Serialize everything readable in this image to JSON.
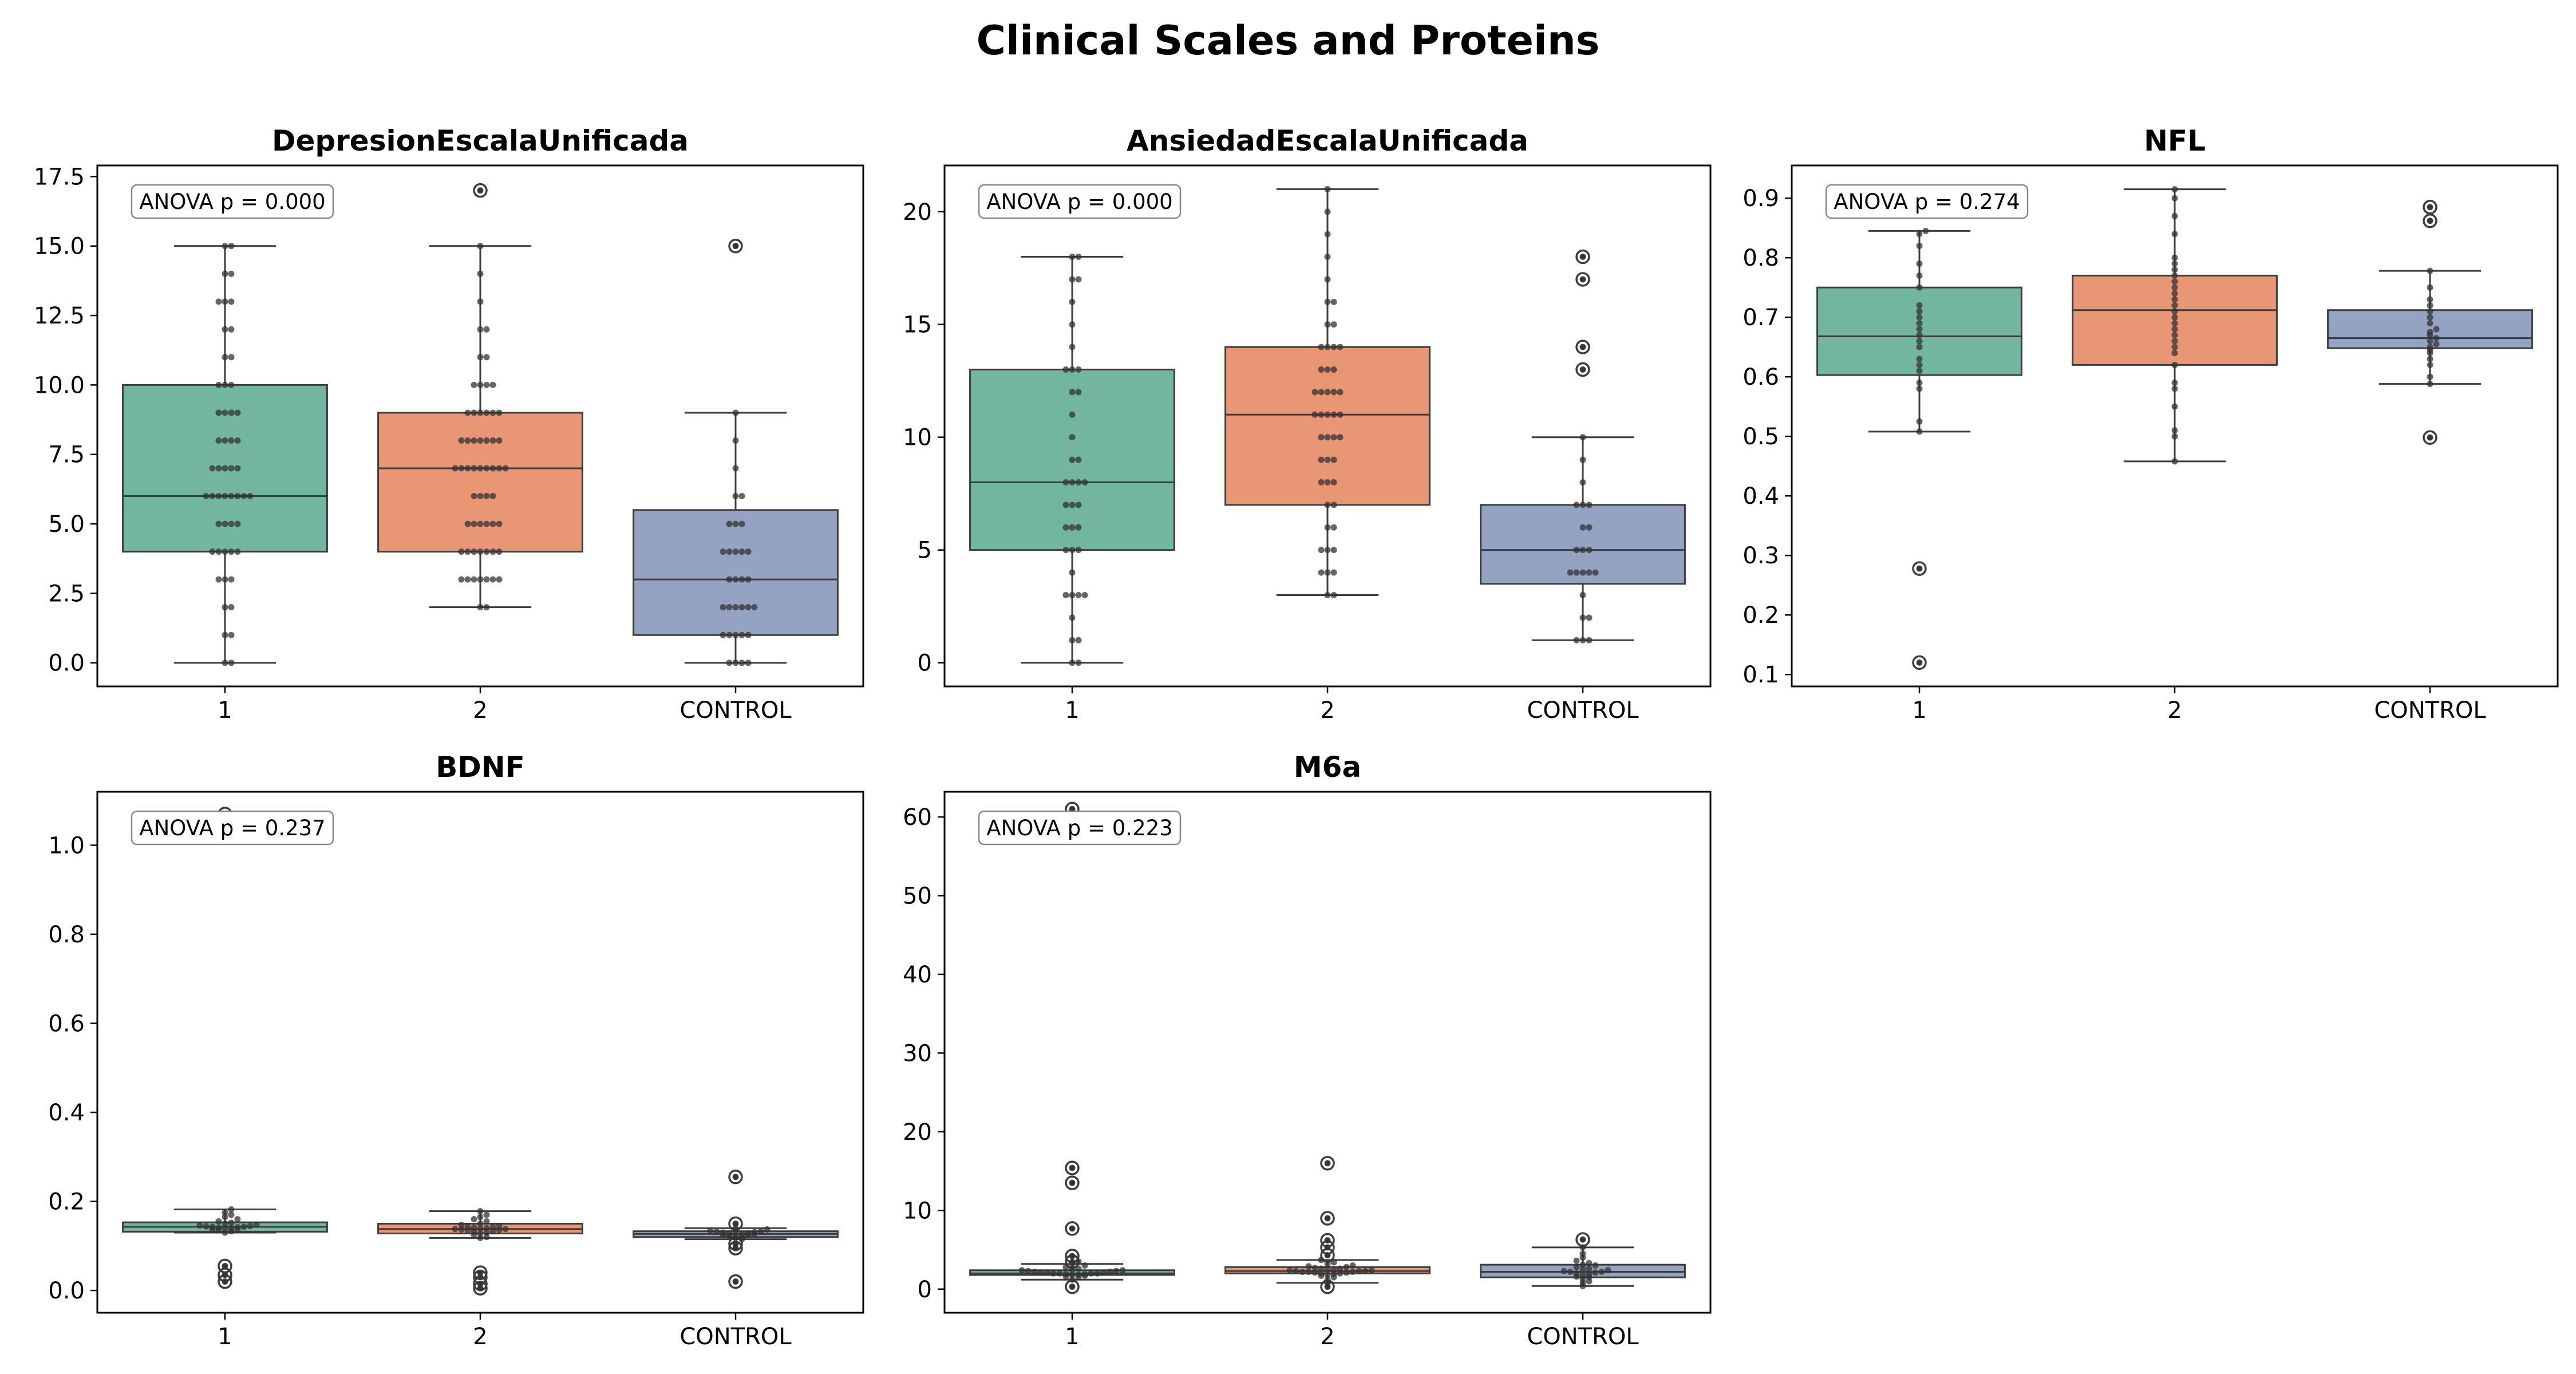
{
  "figure_title": "Clinical Scales and Proteins",
  "chart_data": [
    {
      "type": "box",
      "title": "DepresionEscalaUnificada",
      "categories": [
        "1",
        "2",
        "CONTROL"
      ],
      "colors": [
        "#72b6a1",
        "#e99675",
        "#95a3c3"
      ],
      "ylim": [
        -0.85,
        17.9
      ],
      "yticks": [
        0,
        2.5,
        5,
        7.5,
        10,
        12.5,
        15,
        17.5
      ],
      "ytick_labels": [
        "0.0",
        "2.5",
        "5.0",
        "7.5",
        "10.0",
        "12.5",
        "15.0",
        "17.5"
      ],
      "annotation": "ANOVA p = 0.000",
      "boxes": [
        {
          "q1": 4,
          "median": 6,
          "q3": 10,
          "whisker_low": 0,
          "whisker_high": 15,
          "outliers": []
        },
        {
          "q1": 4,
          "median": 7,
          "q3": 9,
          "whisker_low": 2,
          "whisker_high": 15,
          "outliers": [
            17
          ]
        },
        {
          "q1": 1,
          "median": 3,
          "q3": 5.5,
          "whisker_low": 0,
          "whisker_high": 9,
          "outliers": [
            15
          ]
        }
      ],
      "points": [
        [
          0,
          0,
          1,
          1,
          2,
          2,
          3,
          3,
          3,
          4,
          4,
          4,
          4,
          4,
          5,
          5,
          5,
          5,
          6,
          6,
          6,
          6,
          6,
          6,
          6,
          6,
          7,
          7,
          7,
          7,
          7,
          8,
          8,
          8,
          8,
          9,
          9,
          9,
          9,
          10,
          10,
          10,
          11,
          11,
          12,
          12,
          13,
          13,
          13,
          14,
          14,
          15,
          15
        ],
        [
          2,
          2,
          3,
          3,
          3,
          3,
          3,
          3,
          3,
          4,
          4,
          4,
          4,
          4,
          4,
          4,
          5,
          5,
          5,
          5,
          5,
          5,
          6,
          6,
          6,
          6,
          7,
          7,
          7,
          7,
          7,
          7,
          7,
          7,
          7,
          8,
          8,
          8,
          8,
          8,
          8,
          8,
          9,
          9,
          9,
          9,
          9,
          9,
          10,
          10,
          10,
          10,
          11,
          11,
          12,
          12,
          13,
          14,
          15,
          17
        ],
        [
          0,
          0,
          0,
          0,
          1,
          1,
          1,
          1,
          1,
          2,
          2,
          2,
          2,
          2,
          2,
          3,
          3,
          3,
          3,
          4,
          4,
          4,
          4,
          4,
          5,
          5,
          5,
          6,
          6,
          7,
          8,
          9,
          15
        ]
      ]
    },
    {
      "type": "box",
      "title": "AnsiedadEscalaUnificada",
      "categories": [
        "1",
        "2",
        "CONTROL"
      ],
      "colors": [
        "#72b6a1",
        "#e99675",
        "#95a3c3"
      ],
      "ylim": [
        -1.05,
        22.05
      ],
      "yticks": [
        0,
        5,
        10,
        15,
        20
      ],
      "ytick_labels": [
        "0",
        "5",
        "10",
        "15",
        "20"
      ],
      "annotation": "ANOVA p = 0.000",
      "boxes": [
        {
          "q1": 5,
          "median": 8,
          "q3": 13,
          "whisker_low": 0,
          "whisker_high": 18,
          "outliers": []
        },
        {
          "q1": 7,
          "median": 11,
          "q3": 14,
          "whisker_low": 3,
          "whisker_high": 21,
          "outliers": []
        },
        {
          "q1": 3.5,
          "median": 5,
          "q3": 7,
          "whisker_low": 1,
          "whisker_high": 10,
          "outliers": [
            13,
            14,
            17,
            18
          ]
        }
      ],
      "points": [
        [
          0,
          0,
          1,
          1,
          2,
          3,
          3,
          3,
          3,
          4,
          5,
          5,
          5,
          6,
          6,
          6,
          7,
          7,
          7,
          8,
          8,
          8,
          8,
          9,
          9,
          10,
          11,
          12,
          12,
          13,
          13,
          13,
          14,
          15,
          16,
          17,
          17,
          18,
          18
        ],
        [
          3,
          3,
          4,
          4,
          4,
          5,
          5,
          5,
          6,
          6,
          7,
          7,
          8,
          8,
          8,
          9,
          9,
          9,
          10,
          10,
          10,
          10,
          11,
          11,
          11,
          11,
          11,
          12,
          12,
          12,
          12,
          12,
          13,
          13,
          13,
          14,
          14,
          14,
          14,
          15,
          15,
          16,
          16,
          17,
          18,
          19,
          20,
          21
        ],
        [
          1,
          1,
          1,
          2,
          2,
          3,
          4,
          4,
          4,
          4,
          4,
          5,
          5,
          5,
          6,
          6,
          7,
          7,
          7,
          8,
          9,
          10,
          13,
          14,
          17,
          18
        ]
      ]
    },
    {
      "type": "box",
      "title": "NFL",
      "categories": [
        "1",
        "2",
        "CONTROL"
      ],
      "colors": [
        "#72b6a1",
        "#e99675",
        "#95a3c3"
      ],
      "ylim": [
        0.08,
        0.955
      ],
      "yticks": [
        0.1,
        0.2,
        0.3,
        0.4,
        0.5,
        0.6,
        0.7,
        0.8,
        0.9
      ],
      "ytick_labels": [
        "0.1",
        "0.2",
        "0.3",
        "0.4",
        "0.5",
        "0.6",
        "0.7",
        "0.8",
        "0.9"
      ],
      "annotation": "ANOVA p = 0.274",
      "boxes": [
        {
          "q1": 0.603,
          "median": 0.668,
          "q3": 0.75,
          "whisker_low": 0.508,
          "whisker_high": 0.845,
          "outliers": [
            0.278,
            0.12
          ]
        },
        {
          "q1": 0.62,
          "median": 0.712,
          "q3": 0.77,
          "whisker_low": 0.458,
          "whisker_high": 0.915,
          "outliers": []
        },
        {
          "q1": 0.648,
          "median": 0.665,
          "q3": 0.712,
          "whisker_low": 0.588,
          "whisker_high": 0.778,
          "outliers": [
            0.498,
            0.862,
            0.885
          ]
        }
      ],
      "points": [
        [
          0.12,
          0.278,
          0.508,
          0.525,
          0.58,
          0.59,
          0.61,
          0.62,
          0.63,
          0.65,
          0.66,
          0.67,
          0.68,
          0.69,
          0.7,
          0.71,
          0.72,
          0.75,
          0.77,
          0.79,
          0.82,
          0.84,
          0.845
        ],
        [
          0.458,
          0.5,
          0.51,
          0.55,
          0.58,
          0.59,
          0.62,
          0.64,
          0.65,
          0.66,
          0.67,
          0.68,
          0.69,
          0.7,
          0.71,
          0.72,
          0.73,
          0.74,
          0.75,
          0.76,
          0.77,
          0.78,
          0.79,
          0.8,
          0.84,
          0.87,
          0.9,
          0.915
        ],
        [
          0.498,
          0.588,
          0.6,
          0.62,
          0.63,
          0.64,
          0.645,
          0.65,
          0.655,
          0.66,
          0.665,
          0.67,
          0.675,
          0.68,
          0.69,
          0.7,
          0.71,
          0.72,
          0.73,
          0.75,
          0.778,
          0.862,
          0.885
        ]
      ]
    },
    {
      "type": "box",
      "title": "BDNF",
      "categories": [
        "1",
        "2",
        "CONTROL"
      ],
      "colors": [
        "#72b6a1",
        "#e99675",
        "#95a3c3"
      ],
      "ylim": [
        -0.05,
        1.12
      ],
      "yticks": [
        0,
        0.2,
        0.4,
        0.6,
        0.8,
        1.0
      ],
      "ytick_labels": [
        "0.0",
        "0.2",
        "0.4",
        "0.6",
        "0.8",
        "1.0"
      ],
      "annotation": "ANOVA p = 0.237",
      "boxes": [
        {
          "q1": 0.132,
          "median": 0.143,
          "q3": 0.153,
          "whisker_low": 0.13,
          "whisker_high": 0.182,
          "outliers": [
            0.02,
            0.035,
            0.055,
            1.07
          ]
        },
        {
          "q1": 0.128,
          "median": 0.138,
          "q3": 0.15,
          "whisker_low": 0.118,
          "whisker_high": 0.178,
          "outliers": [
            0.005,
            0.015,
            0.03,
            0.04
          ]
        },
        {
          "q1": 0.12,
          "median": 0.127,
          "q3": 0.133,
          "whisker_low": 0.115,
          "whisker_high": 0.14,
          "outliers": [
            0.02,
            0.095,
            0.105,
            0.15,
            0.255
          ]
        }
      ],
      "points": [
        [
          0.02,
          0.035,
          0.055,
          0.13,
          0.133,
          0.135,
          0.137,
          0.138,
          0.14,
          0.14,
          0.141,
          0.142,
          0.143,
          0.143,
          0.144,
          0.145,
          0.146,
          0.148,
          0.15,
          0.152,
          0.155,
          0.16,
          0.165,
          0.17,
          0.175,
          0.182,
          1.07
        ],
        [
          0.005,
          0.015,
          0.03,
          0.04,
          0.118,
          0.12,
          0.125,
          0.128,
          0.13,
          0.132,
          0.134,
          0.135,
          0.136,
          0.137,
          0.138,
          0.138,
          0.139,
          0.14,
          0.141,
          0.142,
          0.143,
          0.145,
          0.147,
          0.15,
          0.155,
          0.16,
          0.165,
          0.17,
          0.178
        ],
        [
          0.02,
          0.095,
          0.105,
          0.115,
          0.118,
          0.12,
          0.122,
          0.124,
          0.125,
          0.126,
          0.127,
          0.127,
          0.128,
          0.129,
          0.13,
          0.131,
          0.132,
          0.133,
          0.135,
          0.137,
          0.14,
          0.15,
          0.255
        ]
      ]
    },
    {
      "type": "box",
      "title": "M6a",
      "categories": [
        "1",
        "2",
        "CONTROL"
      ],
      "colors": [
        "#72b6a1",
        "#e99675",
        "#95a3c3"
      ],
      "ylim": [
        -3.0,
        63.2
      ],
      "yticks": [
        0,
        10,
        20,
        30,
        40,
        50,
        60
      ],
      "ytick_labels": [
        "0",
        "10",
        "20",
        "30",
        "40",
        "50",
        "60"
      ],
      "annotation": "ANOVA p = 0.223",
      "boxes": [
        {
          "q1": 1.8,
          "median": 2.0,
          "q3": 2.4,
          "whisker_low": 1.2,
          "whisker_high": 3.2,
          "outliers": [
            0.3,
            3.5,
            4.2,
            7.7,
            13.5,
            15.4,
            61.0
          ]
        },
        {
          "q1": 2.0,
          "median": 2.3,
          "q3": 2.8,
          "whisker_low": 0.8,
          "whisker_high": 3.7,
          "outliers": [
            0.3,
            4.3,
            5.3,
            6.2,
            9.0,
            16.0
          ]
        },
        {
          "q1": 1.5,
          "median": 2.2,
          "q3": 3.1,
          "whisker_low": 0.4,
          "whisker_high": 5.3,
          "outliers": [
            6.3
          ]
        }
      ],
      "points": [
        [
          0.3,
          1.2,
          1.5,
          1.6,
          1.7,
          1.8,
          1.8,
          1.9,
          1.9,
          2.0,
          2.0,
          2.0,
          2.0,
          2.1,
          2.1,
          2.1,
          2.2,
          2.2,
          2.3,
          2.3,
          2.4,
          2.4,
          2.5,
          2.6,
          2.8,
          3.0,
          3.2,
          3.5,
          4.2,
          7.7,
          13.5,
          15.4,
          61.0
        ],
        [
          0.3,
          0.8,
          1.2,
          1.5,
          1.7,
          1.8,
          1.9,
          2.0,
          2.0,
          2.1,
          2.1,
          2.2,
          2.2,
          2.2,
          2.3,
          2.3,
          2.3,
          2.4,
          2.4,
          2.5,
          2.5,
          2.6,
          2.6,
          2.7,
          2.8,
          2.9,
          3.0,
          3.2,
          3.4,
          3.7,
          4.3,
          5.3,
          6.2,
          9.0,
          16.0
        ],
        [
          0.4,
          0.8,
          1.0,
          1.3,
          1.5,
          1.6,
          1.8,
          1.9,
          2.0,
          2.1,
          2.2,
          2.2,
          2.3,
          2.4,
          2.5,
          2.6,
          2.8,
          3.0,
          3.1,
          3.3,
          3.6,
          4.0,
          4.5,
          5.3,
          6.3
        ]
      ]
    }
  ]
}
